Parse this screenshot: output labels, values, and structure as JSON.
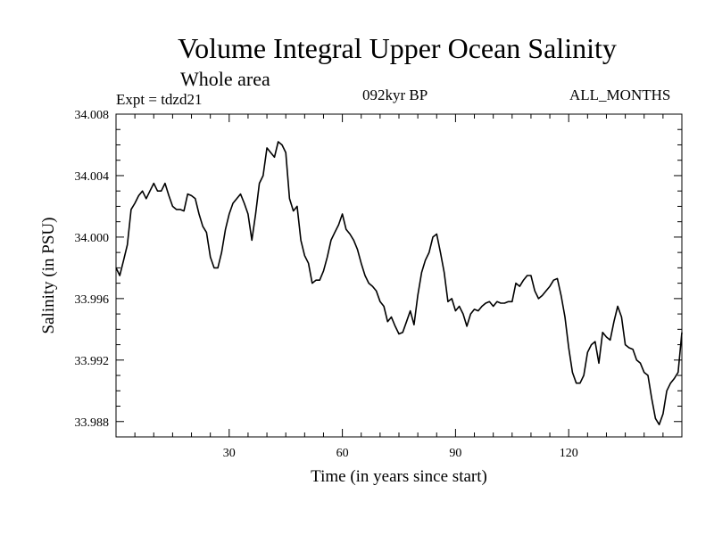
{
  "header": {
    "title": "Volume Integral Upper Ocean Salinity",
    "subtitle": "Whole area",
    "expt": "Expt = tdzd21",
    "period": "092kyr BP",
    "months": "ALL_MONTHS"
  },
  "chart_data": {
    "type": "line",
    "title": "Volume Integral Upper Ocean Salinity",
    "subtitle": "Whole area",
    "xlabel": "Time (in years since start)",
    "ylabel": "Salinity (in PSU)",
    "xlim": [
      0,
      150
    ],
    "ylim": [
      33.987,
      34.008
    ],
    "x_ticks": [
      30,
      60,
      90,
      120
    ],
    "x_tick_labels": [
      "30",
      "60",
      "90",
      "120"
    ],
    "y_ticks": [
      33.988,
      33.992,
      33.996,
      34.0,
      34.004,
      34.008
    ],
    "y_tick_labels": [
      "33.988",
      "33.992",
      "33.996",
      "34.000",
      "34.004",
      "34.008"
    ],
    "series": [
      {
        "name": "Salinity",
        "x": [
          0,
          1,
          2,
          3,
          4,
          5,
          6,
          7,
          8,
          9,
          10,
          11,
          12,
          13,
          14,
          15,
          16,
          17,
          18,
          19,
          20,
          21,
          22,
          23,
          24,
          25,
          26,
          27,
          28,
          29,
          30,
          31,
          32,
          33,
          34,
          35,
          36,
          37,
          38,
          39,
          40,
          41,
          42,
          43,
          44,
          45,
          46,
          47,
          48,
          49,
          50,
          51,
          52,
          53,
          54,
          55,
          56,
          57,
          58,
          59,
          60,
          61,
          62,
          63,
          64,
          65,
          66,
          67,
          68,
          69,
          70,
          71,
          72,
          73,
          74,
          75,
          76,
          77,
          78,
          79,
          80,
          81,
          82,
          83,
          84,
          85,
          86,
          87,
          88,
          89,
          90,
          91,
          92,
          93,
          94,
          95,
          96,
          97,
          98,
          99,
          100,
          101,
          102,
          103,
          104,
          105,
          106,
          107,
          108,
          109,
          110,
          111,
          112,
          113,
          114,
          115,
          116,
          117,
          118,
          119,
          120,
          121,
          122,
          123,
          124,
          125,
          126,
          127,
          128,
          129,
          130,
          131,
          132,
          133,
          134,
          135,
          136,
          137,
          138,
          139,
          140,
          141,
          142,
          143,
          144,
          145,
          146,
          147,
          148,
          149,
          150
        ],
        "values": [
          33.998,
          33.9975,
          33.9985,
          33.9995,
          34.0018,
          34.0022,
          34.0027,
          34.003,
          34.0025,
          34.003,
          34.0035,
          34.003,
          34.003,
          34.0035,
          34.0027,
          34.002,
          34.0018,
          34.0018,
          34.0017,
          34.0028,
          34.0027,
          34.0025,
          34.0015,
          34.0007,
          34.0003,
          33.9987,
          33.998,
          33.998,
          33.999,
          34.0005,
          34.0015,
          34.0022,
          34.0025,
          34.0028,
          34.0022,
          34.0015,
          33.9998,
          34.0015,
          34.0035,
          34.004,
          34.0058,
          34.0055,
          34.0052,
          34.0062,
          34.006,
          34.0055,
          34.0025,
          34.0017,
          34.002,
          33.9998,
          33.9988,
          33.9983,
          33.997,
          33.9972,
          33.9972,
          33.9978,
          33.9987,
          33.9998,
          34.0003,
          34.0008,
          34.0015,
          34.0005,
          34.0002,
          33.9998,
          33.9992,
          33.9983,
          33.9975,
          33.997,
          33.9968,
          33.9965,
          33.9958,
          33.9955,
          33.9945,
          33.9948,
          33.9942,
          33.9937,
          33.9938,
          33.9945,
          33.9952,
          33.9943,
          33.9962,
          33.9977,
          33.9985,
          33.999,
          34.0,
          34.0002,
          33.999,
          33.9977,
          33.9958,
          33.996,
          33.9952,
          33.9955,
          33.995,
          33.9942,
          33.995,
          33.9953,
          33.9952,
          33.9955,
          33.9957,
          33.9958,
          33.9955,
          33.9958,
          33.9957,
          33.9957,
          33.9958,
          33.9958,
          33.997,
          33.9968,
          33.9972,
          33.9975,
          33.9975,
          33.9965,
          33.996,
          33.9962,
          33.9965,
          33.9968,
          33.9972,
          33.9973,
          33.9962,
          33.9948,
          33.9928,
          33.9912,
          33.9905,
          33.9905,
          33.991,
          33.9925,
          33.993,
          33.9932,
          33.9918,
          33.9938,
          33.9935,
          33.9933,
          33.9945,
          33.9955,
          33.9948,
          33.993,
          33.9928,
          33.9927,
          33.992,
          33.9918,
          33.9912,
          33.991,
          33.9895,
          33.9882,
          33.9878,
          33.9885,
          33.99,
          33.9905,
          33.9908,
          33.9912,
          33.9938
        ]
      }
    ]
  }
}
